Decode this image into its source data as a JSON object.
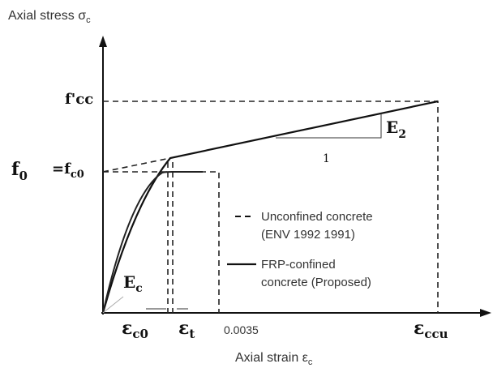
{
  "y_axis_label": {
    "text": "Axial  stress σ",
    "sub": "c"
  },
  "x_axis_label": {
    "text": "Axial strain ε",
    "sub": "c"
  },
  "labels": {
    "fcc": "f'cc",
    "f0": {
      "text": "f",
      "sub": "0"
    },
    "fc0": {
      "text": "=f",
      "sub": "c0"
    },
    "Ec": {
      "text": "E",
      "sub": "c"
    },
    "E2": {
      "text": "E",
      "sub": "2"
    },
    "one": "1",
    "ec0": {
      "text": "ε",
      "sub": "c0"
    },
    "et": {
      "text": "ε",
      "sub": "t"
    },
    "strain_0035": "0.0035",
    "eccu": {
      "text": "ε",
      "sub": "ccu"
    }
  },
  "legend": [
    {
      "lines": [
        "Unconfined concrete",
        "(ENV 1992 1991)"
      ],
      "style": "dashed"
    },
    {
      "lines": [
        "FRP-confined",
        "concrete (Proposed)"
      ],
      "style": "solid"
    }
  ]
}
